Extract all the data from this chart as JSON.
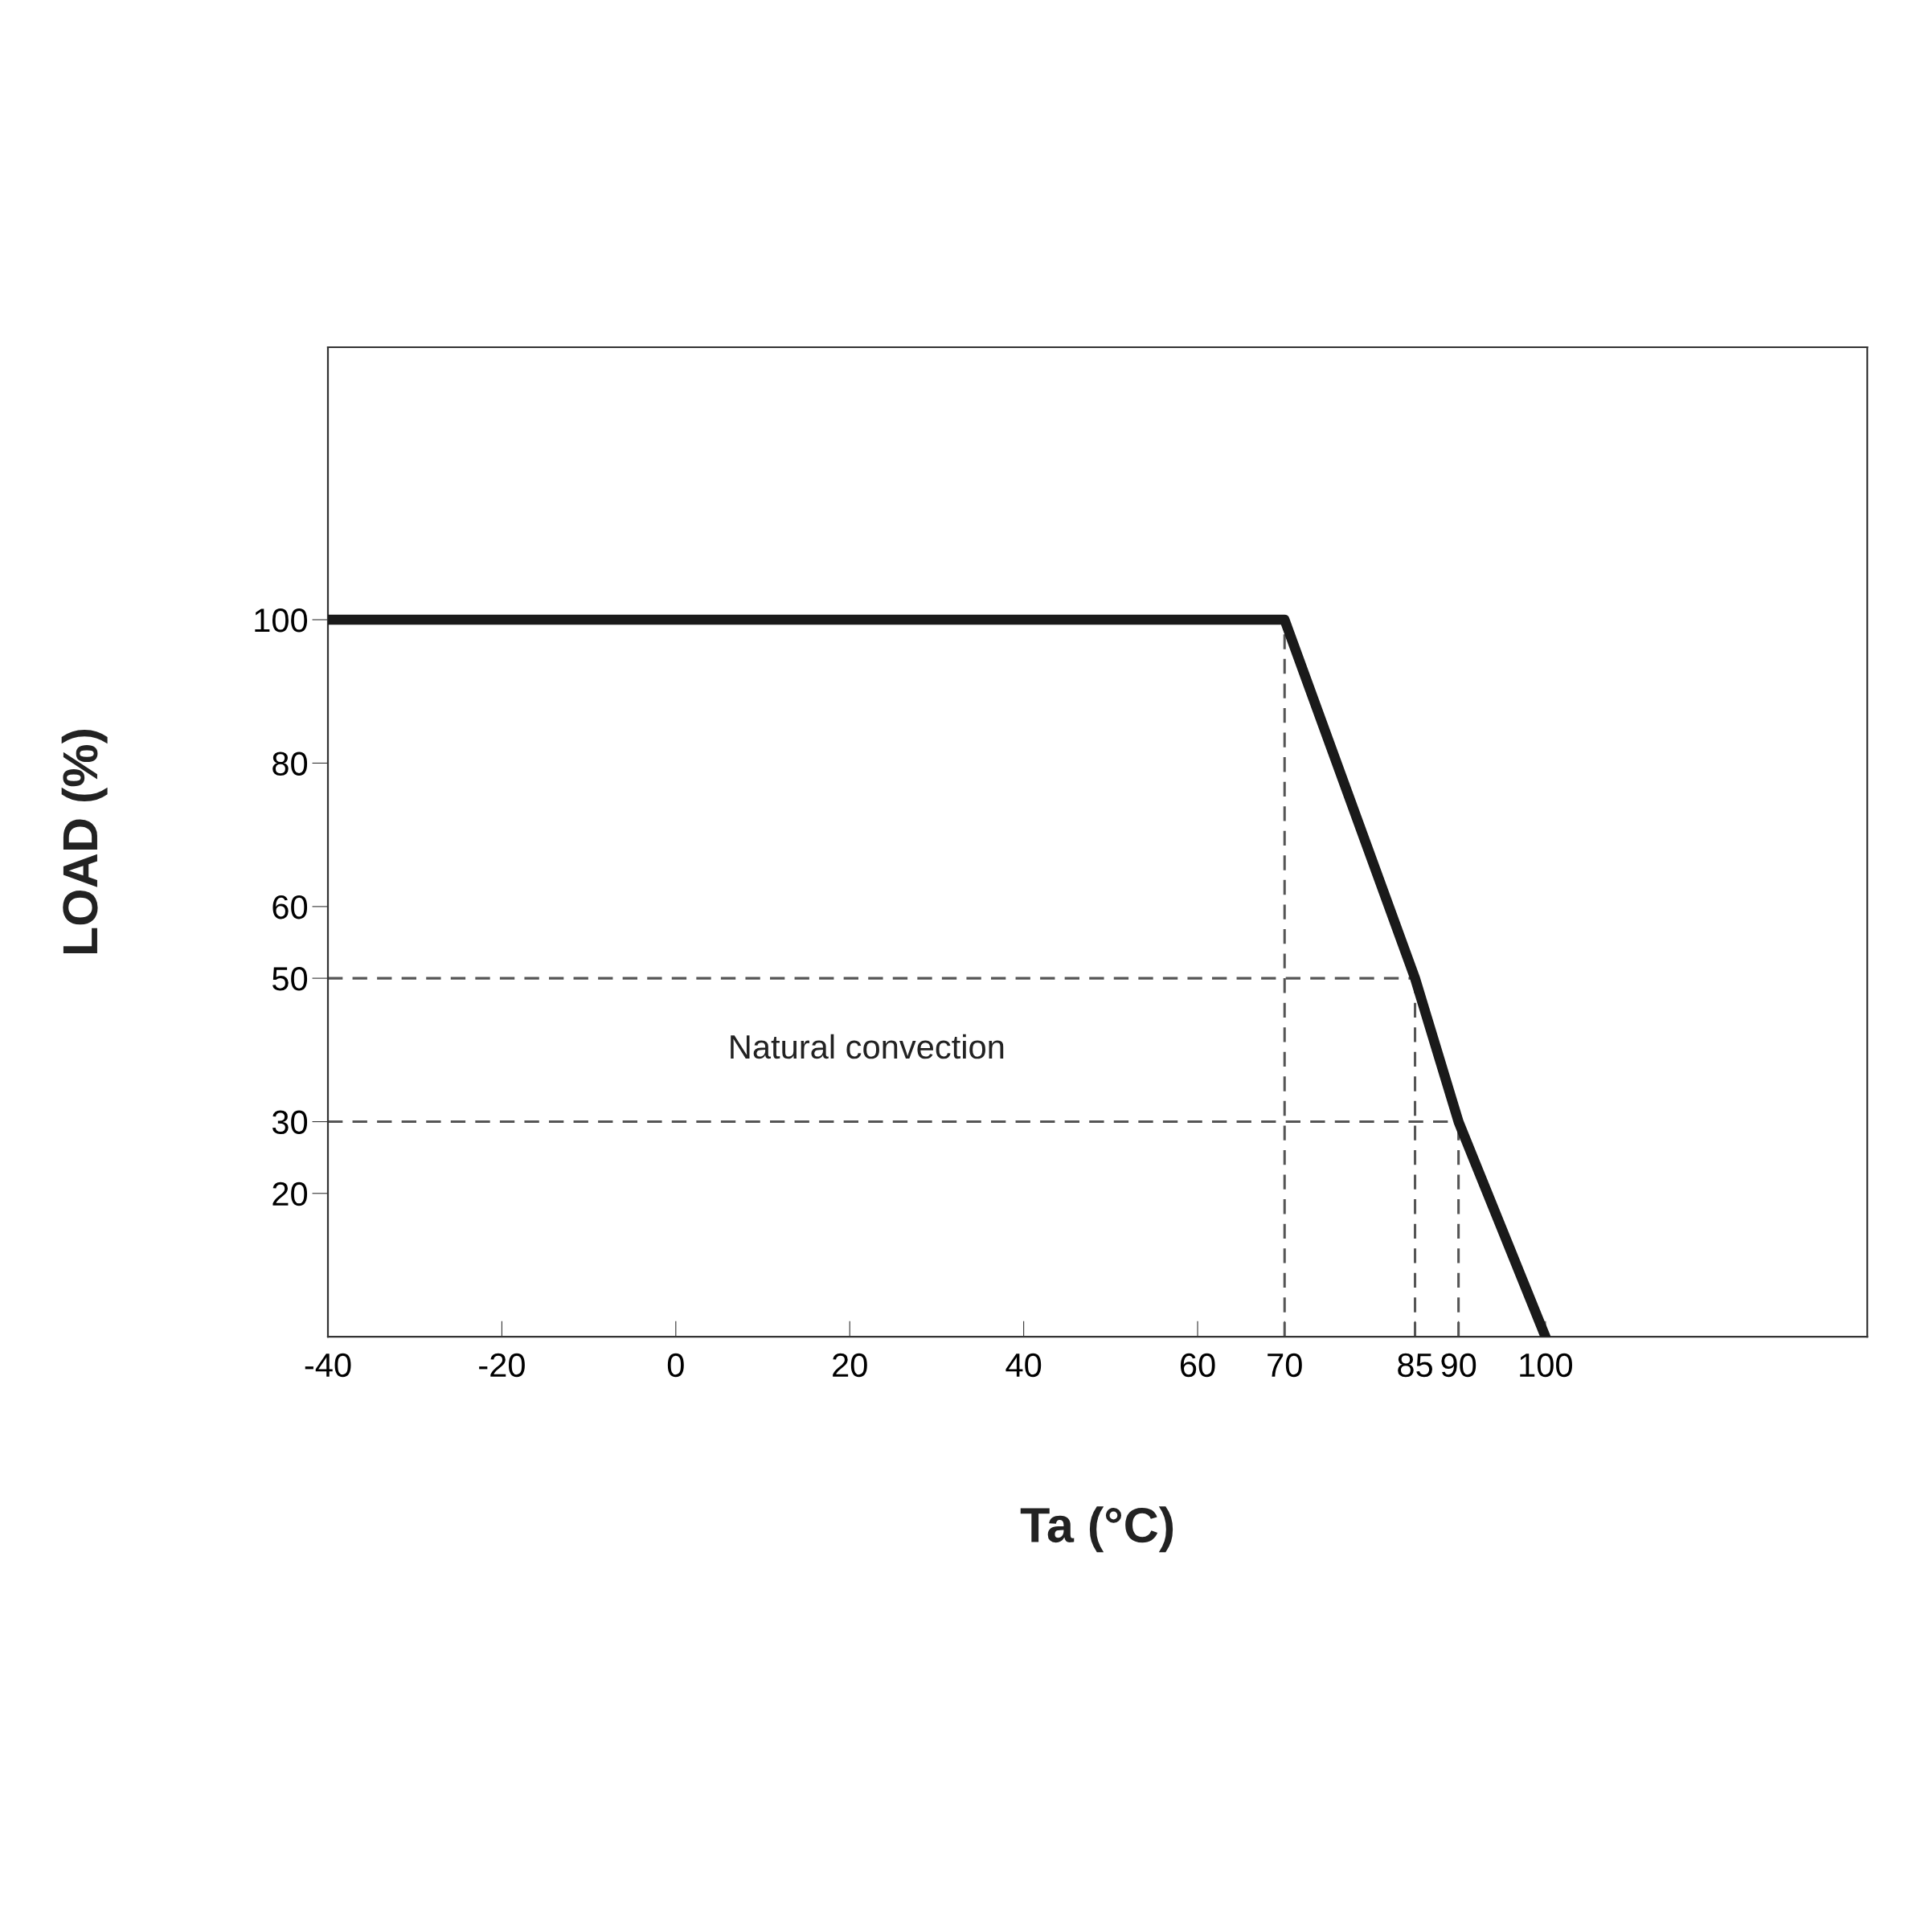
{
  "chart_data": {
    "type": "line",
    "xlabel": "Ta (°C)",
    "ylabel": "LOAD (%)",
    "x": [
      -40,
      70,
      85,
      90,
      100
    ],
    "series": [
      {
        "color": "#1a1a1a",
        "values": [
          100,
          100,
          50,
          30,
          0
        ]
      }
    ],
    "xlim": [
      -40,
      137
    ],
    "xticks": [
      -40,
      -20,
      0,
      20,
      40,
      60,
      70,
      85,
      90,
      100
    ],
    "ylim": [
      0,
      138
    ],
    "yticks": [
      20,
      30,
      50,
      60,
      80,
      100
    ],
    "ref_lines": [
      {
        "axis": "y",
        "value": 50,
        "line_style": "dashed",
        "color": "#555555"
      },
      {
        "axis": "y",
        "value": 30,
        "line_style": "dashed",
        "color": "#555555"
      },
      {
        "axis": "x",
        "value": 70,
        "line_style": "dashed",
        "color": "#555555"
      },
      {
        "axis": "x",
        "value": 85,
        "line_style": "dashed",
        "color": "#555555"
      },
      {
        "axis": "x",
        "value": 90,
        "line_style": "dashed",
        "color": "#555555"
      }
    ],
    "annotations": [
      "Natural convection"
    ],
    "grid": false,
    "marker": "none",
    "line_style": "solid"
  }
}
